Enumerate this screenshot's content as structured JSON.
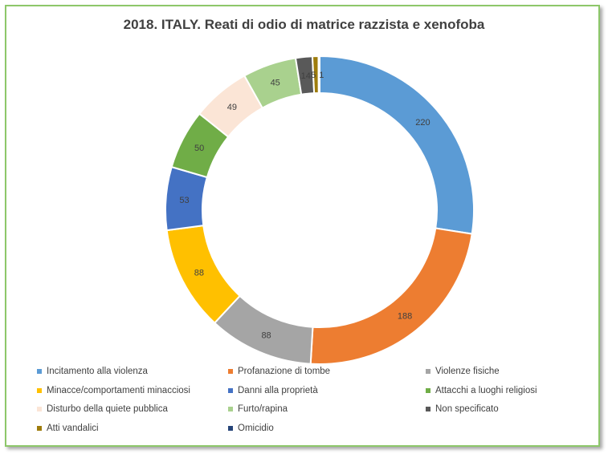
{
  "chart_data": {
    "type": "pie",
    "title": "2018. ITALY. Reati di odio di matrice razzista e xenofoba",
    "categories": [
      "Incitamento alla violenza",
      "Profanazione di tombe",
      "Violenze fisiche",
      "Minacce/comportamenti minacciosi",
      "Danni alla proprietà",
      "Attacchi a luoghi religiosi",
      "Disturbo della quiete pubblica",
      "Furto/rapina",
      "Non specificato",
      "Atti vandalici",
      "Omicidio"
    ],
    "values": [
      220,
      188,
      88,
      88,
      53,
      50,
      49,
      45,
      14,
      5,
      1
    ],
    "data_labels": [
      "220",
      "188",
      "88",
      "88",
      "53",
      "50",
      "49",
      "45",
      "14",
      "5",
      "1"
    ],
    "colors": [
      "#5b9bd5",
      "#ed7d31",
      "#a5a5a5",
      "#ffc000",
      "#4472c4",
      "#70ad47",
      "#fbe5d6",
      "#a9d18e",
      "#595959",
      "#9e7c0c",
      "#264478"
    ],
    "donut": true,
    "legend_position": "bottom",
    "start_angle_deg": 0,
    "direction": "clockwise"
  }
}
